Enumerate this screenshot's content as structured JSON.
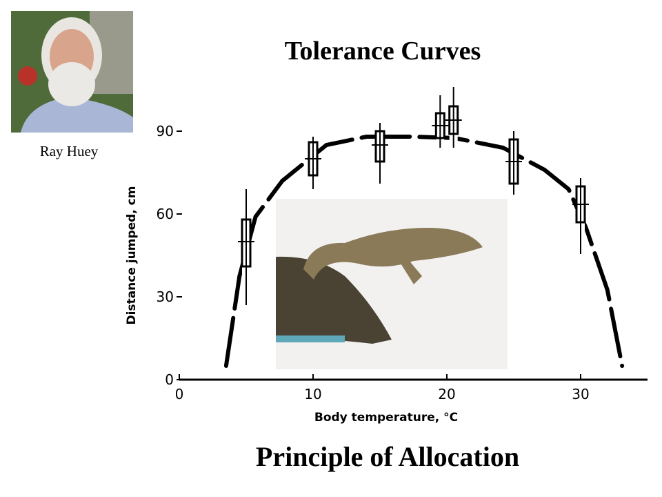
{
  "caption": "Ray Huey",
  "chart_data": {
    "type": "box",
    "title": "Tolerance Curves",
    "subtitle": "Principle of Allocation",
    "xlabel": "Body temperature, °C",
    "ylabel": "Distance jumped, cm",
    "xlim": [
      0,
      35
    ],
    "xticks": [
      0,
      10,
      20,
      30
    ],
    "ylim": [
      0,
      100
    ],
    "yticks": [
      0,
      30,
      60,
      90
    ],
    "color": "#000000",
    "boxes": [
      {
        "x": 5,
        "low": 27,
        "q1": 41,
        "median": 50,
        "q3": 58,
        "high": 69
      },
      {
        "x": 10,
        "low": 69,
        "q1": 74,
        "median": 80,
        "q3": 86,
        "high": 88
      },
      {
        "x": 15,
        "low": 71,
        "q1": 79,
        "median": 85,
        "q3": 90,
        "high": 93
      },
      {
        "x": 19.5,
        "low": 84,
        "q1": 87.5,
        "median": 92,
        "q3": 96.5,
        "high": 103
      },
      {
        "x": 20.5,
        "low": 84,
        "q1": 89,
        "median": 94,
        "q3": 99,
        "high": 106
      },
      {
        "x": 25,
        "low": 67,
        "q1": 71,
        "median": 79,
        "q3": 87,
        "high": 90
      },
      {
        "x": 30,
        "low": 45.5,
        "q1": 57,
        "median": 63.5,
        "q3": 70,
        "high": 73
      }
    ],
    "curve": {
      "x": [
        3.5,
        4.5,
        5.7,
        7.7,
        11,
        14,
        17.5,
        20.6,
        24.2,
        27.3,
        29.1,
        30.4,
        32,
        33.1
      ],
      "values": [
        5,
        37.5,
        59,
        72,
        85,
        88,
        88,
        87.5,
        84,
        76,
        69,
        55,
        32.5,
        5
      ]
    }
  }
}
